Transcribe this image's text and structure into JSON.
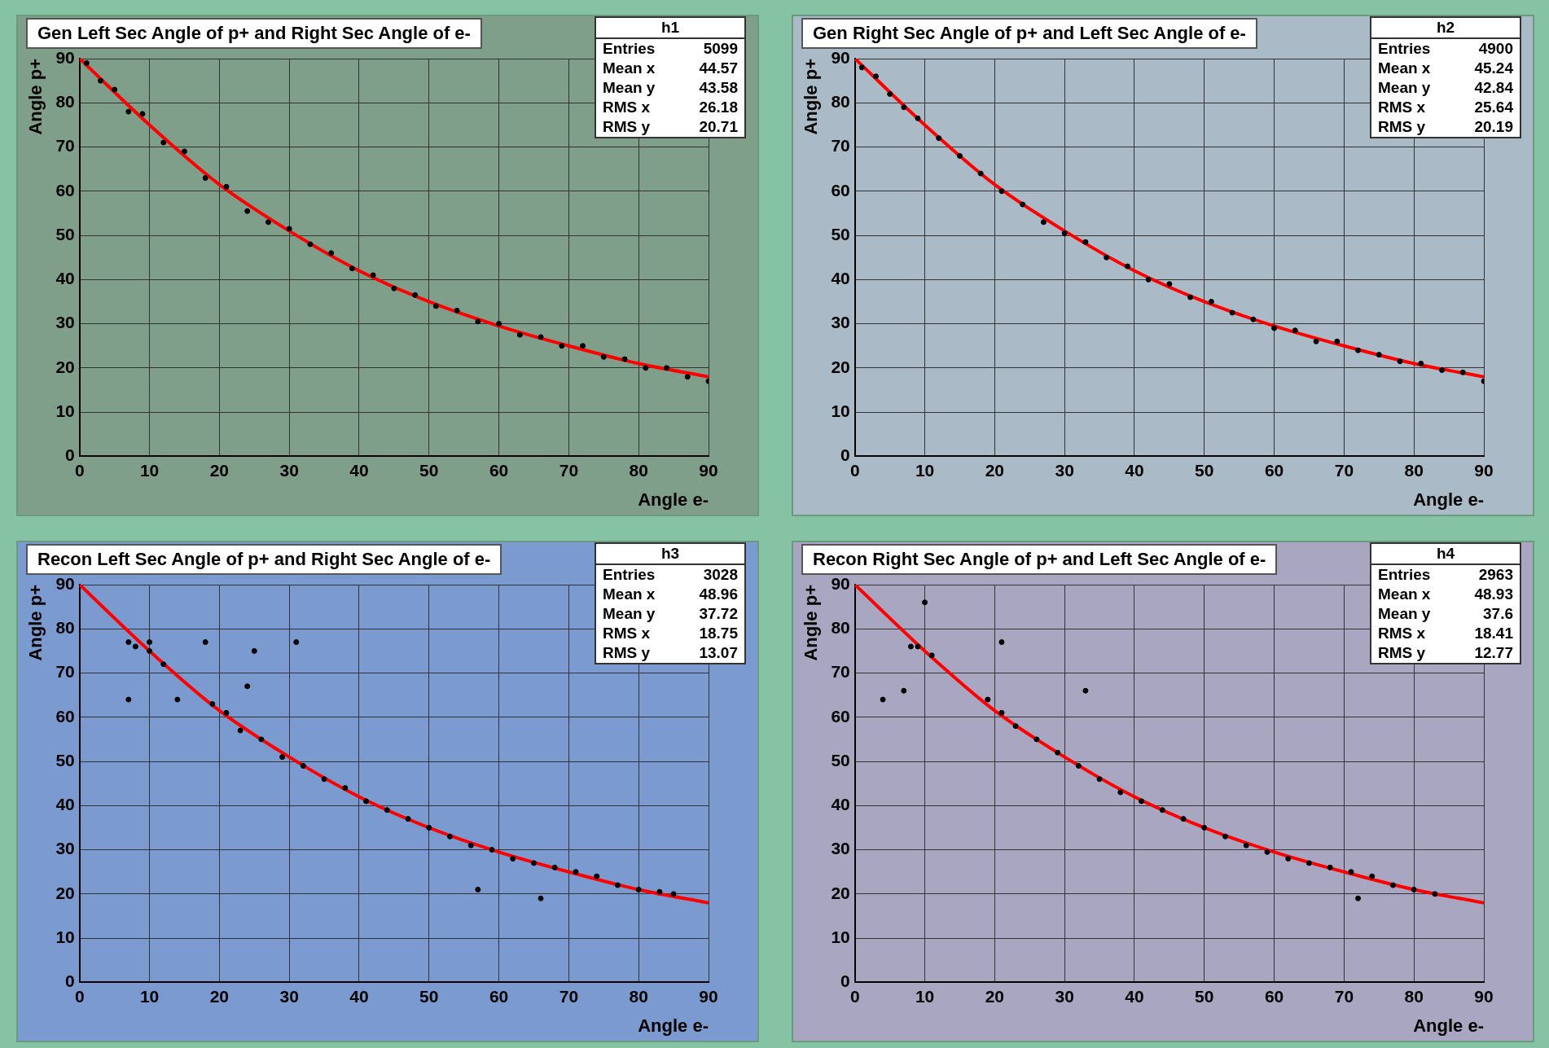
{
  "chart_data": [
    {
      "type": "scatter",
      "title": "Gen Left Sec Angle of p+ and Right Sec Angle of e-",
      "xlabel": "Angle e-",
      "ylabel": "Angle p+",
      "xlim": [
        0,
        90
      ],
      "ylim": [
        0,
        90
      ],
      "xticks": [
        0,
        10,
        20,
        30,
        40,
        50,
        60,
        70,
        80,
        90
      ],
      "yticks": [
        0,
        10,
        20,
        30,
        40,
        50,
        60,
        70,
        80,
        90
      ],
      "grid": true,
      "annotations": [
        "h1",
        "Entries 5099",
        "Mean x 44.57",
        "Mean y 43.58",
        "RMS x 26.18",
        "RMS y 20.71"
      ],
      "series": [
        {
          "type": "scatter",
          "color": "#000000",
          "x": [
            1,
            3,
            5,
            7,
            9,
            12,
            15,
            18,
            21,
            24,
            27,
            30,
            33,
            36,
            39,
            42,
            45,
            48,
            51,
            54,
            57,
            60,
            63,
            66,
            69,
            72,
            75,
            78,
            81,
            84,
            87,
            90
          ],
          "values": [
            89,
            85,
            83,
            78,
            77.5,
            71,
            69,
            63,
            61,
            55.5,
            53,
            51.5,
            48,
            46,
            42.5,
            41,
            38,
            36.5,
            34,
            33,
            30.5,
            30,
            27.5,
            27,
            25,
            25,
            22.5,
            22,
            20,
            20,
            18,
            17
          ]
        },
        {
          "type": "line",
          "color": "#ff0000",
          "x": [
            0,
            10,
            20,
            30,
            40,
            50,
            60,
            70,
            80,
            90
          ],
          "values": [
            90,
            75,
            61.5,
            51,
            42,
            35,
            29.5,
            25,
            21,
            18
          ]
        }
      ]
    },
    {
      "type": "scatter",
      "title": "Gen Right Sec Angle of p+ and Left Sec Angle of e-",
      "xlabel": "Angle e-",
      "ylabel": "Angle p+",
      "xlim": [
        0,
        90
      ],
      "ylim": [
        0,
        90
      ],
      "xticks": [
        0,
        10,
        20,
        30,
        40,
        50,
        60,
        70,
        80,
        90
      ],
      "yticks": [
        0,
        10,
        20,
        30,
        40,
        50,
        60,
        70,
        80,
        90
      ],
      "grid": true,
      "annotations": [
        "h2",
        "Entries 4900",
        "Mean x 45.24",
        "Mean y 42.84",
        "RMS x 25.64",
        "RMS y 20.19"
      ],
      "series": [
        {
          "type": "scatter",
          "color": "#000000",
          "x": [
            1,
            3,
            5,
            7,
            9,
            12,
            15,
            18,
            21,
            24,
            27,
            30,
            33,
            36,
            39,
            42,
            45,
            48,
            51,
            54,
            57,
            60,
            63,
            66,
            69,
            72,
            75,
            78,
            81,
            84,
            87,
            90
          ],
          "values": [
            88,
            86,
            82,
            79,
            76.5,
            72,
            68,
            64,
            60,
            57,
            53,
            50.5,
            48.5,
            45,
            43,
            40,
            39,
            36,
            35,
            32.5,
            31,
            29,
            28.5,
            26,
            26,
            24,
            23,
            21.5,
            21,
            19.5,
            19,
            17
          ]
        },
        {
          "type": "line",
          "color": "#ff0000",
          "x": [
            0,
            10,
            20,
            30,
            40,
            50,
            60,
            70,
            80,
            90
          ],
          "values": [
            90,
            75,
            61.5,
            51,
            42,
            35,
            29.5,
            25,
            21,
            18
          ]
        }
      ]
    },
    {
      "type": "scatter",
      "title": "Recon Left Sec Angle of p+ and Right Sec Angle of e-",
      "xlabel": "Angle e-",
      "ylabel": "Angle p+",
      "xlim": [
        0,
        90
      ],
      "ylim": [
        0,
        90
      ],
      "xticks": [
        0,
        10,
        20,
        30,
        40,
        50,
        60,
        70,
        80,
        90
      ],
      "yticks": [
        0,
        10,
        20,
        30,
        40,
        50,
        60,
        70,
        80,
        90
      ],
      "grid": true,
      "annotations": [
        "h3",
        "Entries 3028",
        "Mean x 48.96",
        "Mean y 37.72",
        "RMS x 18.75",
        "RMS y 13.07"
      ],
      "series": [
        {
          "type": "scatter",
          "color": "#000000",
          "x": [
            7,
            8,
            10,
            12,
            7,
            10,
            14,
            18,
            24,
            25,
            31,
            57,
            66,
            19,
            21,
            23,
            26,
            29,
            32,
            35,
            38,
            41,
            44,
            47,
            50,
            53,
            56,
            59,
            62,
            65,
            68,
            71,
            74,
            77,
            80,
            83,
            85
          ],
          "values": [
            77,
            76,
            75,
            72,
            64,
            77,
            64,
            77,
            67,
            75,
            77,
            21,
            19,
            63,
            61,
            57,
            55,
            51,
            49,
            46,
            44,
            41,
            39,
            37,
            35,
            33,
            31,
            30,
            28,
            27,
            26,
            25,
            24,
            22,
            21,
            20.5,
            20
          ]
        },
        {
          "type": "line",
          "color": "#ff0000",
          "x": [
            0,
            10,
            20,
            30,
            40,
            50,
            60,
            70,
            80,
            90
          ],
          "values": [
            90,
            75,
            61.5,
            51,
            42,
            35,
            29.5,
            25,
            21,
            18
          ]
        }
      ]
    },
    {
      "type": "scatter",
      "title": "Recon Right Sec Angle of p+ and Left Sec Angle of e-",
      "xlabel": "Angle e-",
      "ylabel": "Angle p+",
      "xlim": [
        0,
        90
      ],
      "ylim": [
        0,
        90
      ],
      "xticks": [
        0,
        10,
        20,
        30,
        40,
        50,
        60,
        70,
        80,
        90
      ],
      "yticks": [
        0,
        10,
        20,
        30,
        40,
        50,
        60,
        70,
        80,
        90
      ],
      "grid": true,
      "annotations": [
        "h4",
        "Entries 2963",
        "Mean x 48.93",
        "Mean y 37.6",
        "RMS x 18.41",
        "RMS y 12.77"
      ],
      "series": [
        {
          "type": "scatter",
          "color": "#000000",
          "x": [
            8,
            9,
            11,
            4,
            7,
            10,
            21,
            33,
            72,
            19,
            21,
            23,
            26,
            29,
            32,
            35,
            38,
            41,
            44,
            47,
            50,
            53,
            56,
            59,
            62,
            65,
            68,
            71,
            74,
            77,
            80,
            83
          ],
          "values": [
            76,
            76,
            74,
            64,
            66,
            86,
            77,
            66,
            19,
            64,
            61,
            58,
            55,
            52,
            49,
            46,
            43,
            41,
            39,
            37,
            35,
            33,
            31,
            29.5,
            28,
            27,
            26,
            25,
            24,
            22,
            21,
            20
          ]
        },
        {
          "type": "line",
          "color": "#ff0000",
          "x": [
            0,
            10,
            20,
            30,
            40,
            50,
            60,
            70,
            80,
            90
          ],
          "values": [
            90,
            75,
            61.5,
            51,
            42,
            35,
            29.5,
            25,
            21,
            18
          ]
        }
      ]
    }
  ]
}
